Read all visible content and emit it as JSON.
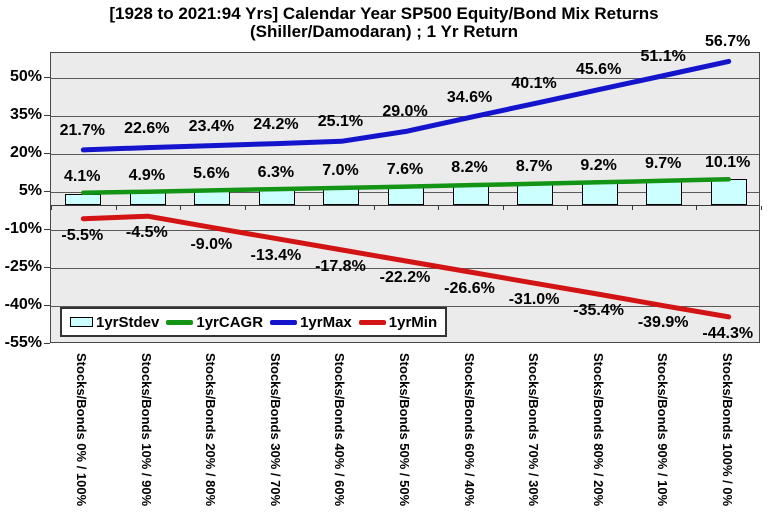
{
  "chart_data": {
    "type": "combo-bar-line",
    "title": "[1928 to 2021:94 Yrs] Calendar Year SP500 Equity/Bond Mix Returns",
    "subtitle": "(Shiller/Damodaran) ; 1 Yr Return",
    "categories": [
      "Stocks/Bonds  0% / 100%",
      "Stocks/Bonds  10% / 90%",
      "Stocks/Bonds  20% / 80%",
      "Stocks/Bonds  30% / 70%",
      "Stocks/Bonds  40% / 60%",
      "Stocks/Bonds  50% / 50%",
      "Stocks/Bonds  60% / 40%",
      "Stocks/Bonds  70% / 30%",
      "Stocks/Bonds  80% / 20%",
      "Stocks/Bonds  90% / 10%",
      "Stocks/Bonds  100% / 0%"
    ],
    "y_axis": {
      "min": -55,
      "max": 60,
      "gridline_step": 15,
      "tick_values": [
        50,
        35,
        20,
        5,
        -10,
        -25,
        -40,
        -55
      ],
      "tick_labels": [
        "50%",
        "35%",
        "20%",
        "5%",
        "-10%",
        "-25%",
        "-40%",
        "-55%"
      ]
    },
    "series": [
      {
        "name": "1yrStdev",
        "type": "bar",
        "color": "#CCFFFF",
        "values": [
          4.1,
          4.9,
          5.6,
          6.3,
          7.0,
          7.6,
          8.2,
          8.7,
          9.2,
          9.7,
          10.1
        ],
        "labels": [
          "4.1%",
          "4.9%",
          "5.6%",
          "6.3%",
          "7.0%",
          "7.6%",
          "8.2%",
          "8.7%",
          "9.2%",
          "9.7%",
          "10.1%"
        ]
      },
      {
        "name": "1yrCAGR",
        "type": "line",
        "color": "#149414",
        "values": [
          4.8,
          5.2,
          5.7,
          6.2,
          6.7,
          7.2,
          7.8,
          8.3,
          8.9,
          9.5,
          10.1
        ],
        "labels": []
      },
      {
        "name": "1yrMax",
        "type": "line",
        "color": "#1414CC",
        "values": [
          21.7,
          22.6,
          23.4,
          24.2,
          25.1,
          29.0,
          34.6,
          40.1,
          45.6,
          51.1,
          56.7
        ],
        "labels": [
          "21.7%",
          "22.6%",
          "23.4%",
          "24.2%",
          "25.1%",
          "29.0%",
          "34.6%",
          "40.1%",
          "45.6%",
          "51.1%",
          "56.7%"
        ]
      },
      {
        "name": "1yrMin",
        "type": "line",
        "color": "#D31414",
        "values": [
          -5.5,
          -4.5,
          -9.0,
          -13.4,
          -17.8,
          -22.2,
          -26.6,
          -31.0,
          -35.4,
          -39.9,
          -44.3
        ],
        "labels": [
          "-5.5%",
          "-4.5%",
          "-9.0%",
          "-13.4%",
          "-17.8%",
          "-22.2%",
          "-26.6%",
          "-31.0%",
          "-35.4%",
          "-39.9%",
          "-44.3%"
        ]
      }
    ],
    "legend_position": "bottom-left-inside",
    "plot_background": "#EBEBEB"
  }
}
